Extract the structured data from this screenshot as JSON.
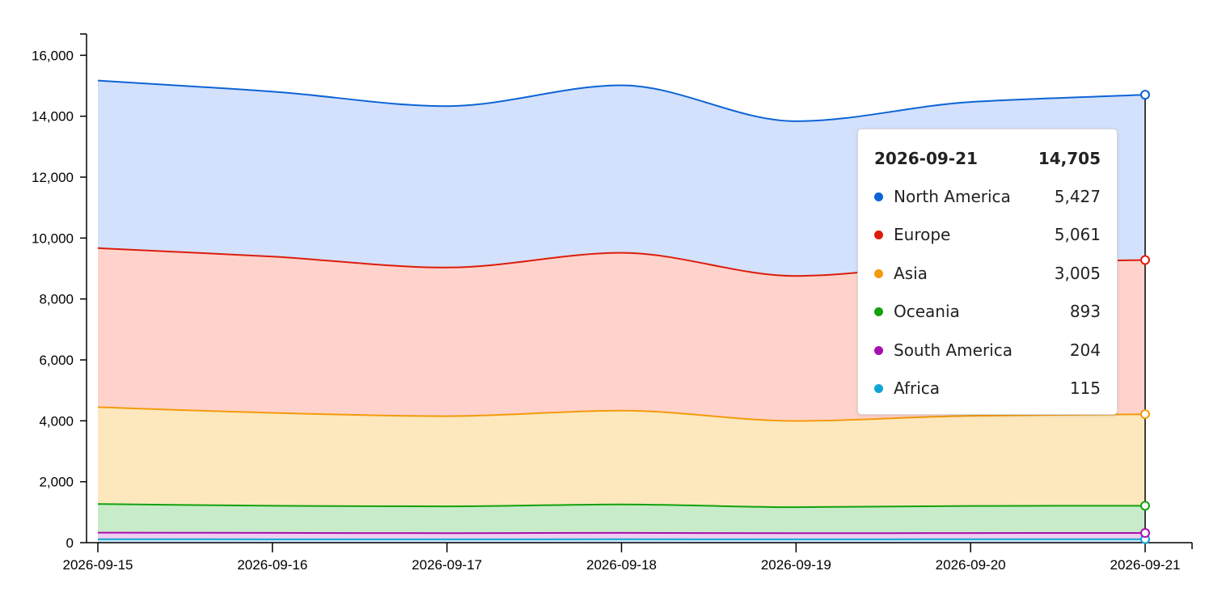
{
  "chart_data": {
    "type": "area",
    "stacked": true,
    "x": [
      "2026-09-15",
      "2026-09-16",
      "2026-09-17",
      "2026-09-18",
      "2026-09-19",
      "2026-09-20",
      "2026-09-21"
    ],
    "ylim": [
      0,
      16700
    ],
    "yticks": [
      0,
      2000,
      4000,
      6000,
      8000,
      10000,
      12000,
      14000,
      16000
    ],
    "ytick_labels": [
      "0",
      "2,000",
      "4,000",
      "6,000",
      "8,000",
      "10,000",
      "12,000",
      "14,000",
      "16,000"
    ],
    "series": [
      {
        "name": "Africa",
        "color": "#0ea5d6",
        "fill": "#cde8f5",
        "values": [
          115,
          110,
          108,
          112,
          110,
          113,
          115
        ]
      },
      {
        "name": "South America",
        "color": "#a80fb0",
        "fill": "#f0cdf0",
        "values": [
          215,
          210,
          205,
          208,
          200,
          203,
          204
        ]
      },
      {
        "name": "Oceania",
        "color": "#13a10e",
        "fill": "#c8ecc9",
        "values": [
          940,
          890,
          880,
          935,
          855,
          890,
          893
        ]
      },
      {
        "name": "Asia",
        "color": "#f59a0c",
        "fill": "#fde8bd",
        "values": [
          3180,
          3050,
          2960,
          3080,
          2830,
          2960,
          3005
        ]
      },
      {
        "name": "Europe",
        "color": "#dd1c0b",
        "fill": "#ffd3cb",
        "values": [
          5220,
          5130,
          4880,
          5180,
          4760,
          5020,
          5061
        ]
      },
      {
        "name": "North America",
        "color": "#0c64d6",
        "fill": "#d3e1fc",
        "values": [
          5500,
          5420,
          5300,
          5500,
          5080,
          5280,
          5427
        ]
      }
    ],
    "tooltip": {
      "date": "2026-09-21",
      "total": "14,705",
      "rows": [
        {
          "name": "North America",
          "value": "5,427",
          "color": "#0c64d6"
        },
        {
          "name": "Europe",
          "value": "5,061",
          "color": "#dd1c0b"
        },
        {
          "name": "Asia",
          "value": "3,005",
          "color": "#f59a0c"
        },
        {
          "name": "Oceania",
          "value": "893",
          "color": "#13a10e"
        },
        {
          "name": "South America",
          "value": "204",
          "color": "#a80fb0"
        },
        {
          "name": "Africa",
          "value": "115",
          "color": "#0ea5d6"
        }
      ]
    }
  }
}
